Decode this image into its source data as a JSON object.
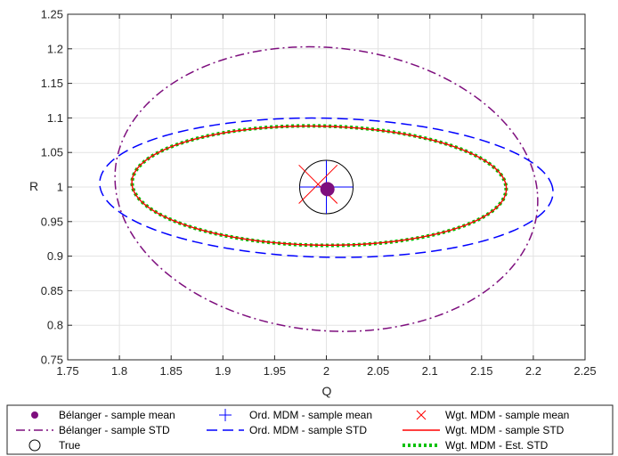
{
  "chart_data": {
    "type": "scatter",
    "title": "",
    "xlabel": "Q",
    "ylabel": "R",
    "xlim": [
      1.75,
      2.25
    ],
    "ylim": [
      0.75,
      1.25
    ],
    "xticks": [
      "1.75",
      "1.8",
      "1.85",
      "1.9",
      "1.95",
      "2",
      "2.05",
      "2.1",
      "2.15",
      "2.2",
      "2.25"
    ],
    "yticks": [
      "0.75",
      "0.8",
      "0.85",
      "0.9",
      "0.95",
      "1",
      "1.05",
      "1.1",
      "1.15",
      "1.2",
      "1.25"
    ],
    "grid": true,
    "legend_position": "below",
    "points": [
      {
        "key": "belanger_mean",
        "name": "Bélanger - sample mean",
        "marker": "dot",
        "color": "#7e0f7e",
        "x": 2.001,
        "y": 0.997
      },
      {
        "key": "ord_mean",
        "name": "Ord. MDM - sample mean",
        "marker": "plus",
        "color": "#0000ff",
        "x": 2.0,
        "y": 1.0
      },
      {
        "key": "wgt_mean",
        "name": "Wgt. MDM - sample mean",
        "marker": "x",
        "color": "#ff0000",
        "x": 1.992,
        "y": 1.004
      },
      {
        "key": "true",
        "name": "True",
        "marker": "circle",
        "color": "#000000",
        "x": 2.0,
        "y": 1.0
      }
    ],
    "ellipses": [
      {
        "key": "belanger_std",
        "name": "Bélanger - sample STD",
        "style": "dashdot",
        "color": "#7e0f7e",
        "cx": 2.0,
        "cy": 0.997,
        "rx": 0.2036,
        "ry": 0.2059,
        "xy": -0.0167
      },
      {
        "key": "ord_std",
        "name": "Ord. MDM - sample STD",
        "style": "dash",
        "color": "#0000ff",
        "cx": 2.0,
        "cy": 0.999,
        "rx": 0.2186,
        "ry": 0.1008,
        "xy": -0.014
      },
      {
        "key": "wgt_sample_std",
        "name": "Wgt. MDM - sample STD",
        "style": "solid",
        "color": "#ff0000",
        "cx": 1.993,
        "cy": 1.002,
        "rx": 0.1807,
        "ry": 0.0862,
        "xy": -0.0093
      },
      {
        "key": "wgt_est_std",
        "name": "Wgt. MDM - Est. STD",
        "style": "dot",
        "color": "#00c000",
        "cx": 1.993,
        "cy": 1.002,
        "rx": 0.1805,
        "ry": 0.0865,
        "xy": -0.0093
      }
    ],
    "legend_entries": [
      "Bélanger - sample mean",
      "Ord. MDM - sample mean",
      "Wgt. MDM - sample mean",
      "Bélanger - sample STD",
      "Ord. MDM - sample STD",
      "Wgt. MDM - sample STD",
      "True",
      "Wgt. MDM - Est. STD"
    ]
  }
}
